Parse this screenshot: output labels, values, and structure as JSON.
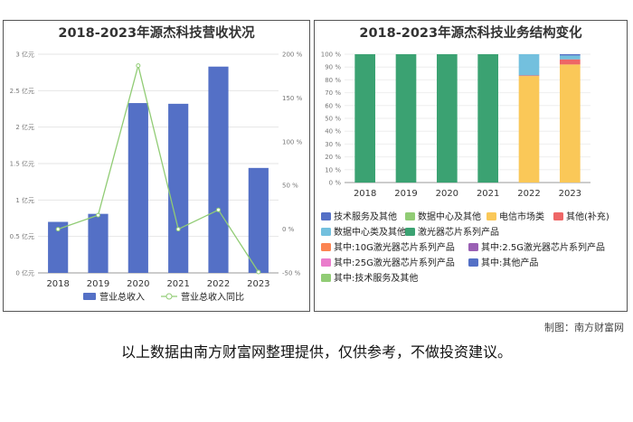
{
  "credit": "制图：南方财富网",
  "disclaimer": "以上数据由南方财富网整理提供，仅供参考，不做投资建议。",
  "chart_data": [
    {
      "type": "bar",
      "title": "2018-2023年源杰科技营收状况",
      "categories": [
        "2018",
        "2019",
        "2020",
        "2021",
        "2022",
        "2023"
      ],
      "yticks_left": [
        "0 亿元",
        "0.5 亿元",
        "1 亿元",
        "1.5 亿元",
        "2 亿元",
        "2.5 亿元",
        "3 亿元"
      ],
      "yticks_right": [
        "-50 %",
        "0 %",
        "50 %",
        "100 %",
        "150 %",
        "200 %"
      ],
      "ylim_left": [
        0,
        3
      ],
      "ylim_right": [
        -50,
        200
      ],
      "series": [
        {
          "name": "营业总收入",
          "kind": "bar",
          "axis": "left",
          "color": "#5470c6",
          "values": [
            0.7,
            0.81,
            2.33,
            2.32,
            2.83,
            1.44
          ]
        },
        {
          "name": "营业总收入同比",
          "kind": "line",
          "axis": "right",
          "color": "#91cc75",
          "values": [
            0,
            16,
            187,
            0,
            22,
            -49
          ]
        }
      ],
      "legend": "bottom"
    },
    {
      "type": "bar",
      "stacked": true,
      "title": "2018-2023年源杰科技业务结构变化",
      "categories": [
        "2018",
        "2019",
        "2020",
        "2021",
        "2022",
        "2023"
      ],
      "yticks": [
        "0 %",
        "10 %",
        "20 %",
        "30 %",
        "40 %",
        "50 %",
        "60 %",
        "70 %",
        "80 %",
        "90 %",
        "100 %"
      ],
      "ylim": [
        0,
        100
      ],
      "series": [
        {
          "name": "技术服务及其他",
          "color": "#5470c6",
          "values": [
            0,
            0,
            0,
            0,
            0,
            0
          ]
        },
        {
          "name": "数据中心及其他",
          "color": "#91cc75",
          "values": [
            0,
            0,
            0,
            0,
            0,
            0
          ]
        },
        {
          "name": "电信市场类",
          "color": "#fac858",
          "values": [
            0,
            0,
            0,
            0,
            83,
            92
          ]
        },
        {
          "name": "其他(补充)",
          "color": "#ee6666",
          "values": [
            0,
            0,
            0,
            0,
            0.5,
            4
          ]
        },
        {
          "name": "数据中心类及其他",
          "color": "#73c0de",
          "values": [
            0,
            0,
            0,
            0,
            16.5,
            3
          ]
        },
        {
          "name": "激光器芯片系列产品",
          "color": "#3ba272",
          "values": [
            100,
            100,
            100,
            100,
            0,
            0
          ]
        },
        {
          "name": "其中:10G激光器芯片系列产品",
          "color": "#fc8452",
          "values": [
            0,
            0,
            0,
            0,
            0,
            0
          ]
        },
        {
          "name": "其中:2.5G激光器芯片系列产品",
          "color": "#9a60b4",
          "values": [
            0,
            0,
            0,
            0,
            0,
            0
          ]
        },
        {
          "name": "其中:25G激光器芯片系列产品",
          "color": "#ea7ccc",
          "values": [
            0,
            0,
            0,
            0,
            0,
            0
          ]
        },
        {
          "name": "其中:其他产品",
          "color": "#5470c6",
          "values": [
            0,
            0,
            0,
            0,
            0,
            1
          ]
        },
        {
          "name": "其中:技术服务及其他",
          "color": "#91cc75",
          "values": [
            0,
            0,
            0,
            0,
            0,
            0
          ]
        }
      ],
      "legend": "bottom"
    }
  ]
}
